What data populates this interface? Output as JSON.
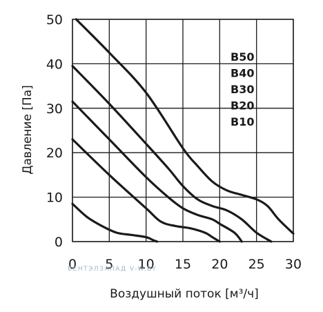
{
  "chart_data": {
    "type": "line",
    "xlabel": "Воздушный поток [м³/ч]",
    "ylabel": "Давление [Па]",
    "xlim": [
      0,
      30
    ],
    "ylim": [
      0,
      50
    ],
    "x_ticks": [
      "0",
      "5",
      "10",
      "15",
      "20",
      "25",
      "30"
    ],
    "y_ticks": [
      "0",
      "10",
      "20",
      "30",
      "40",
      "50"
    ],
    "grid": true,
    "legend_labels": [
      "B50",
      "B40",
      "B30",
      "B20",
      "B10"
    ],
    "series": [
      {
        "name": "B50",
        "points": [
          [
            0.5,
            50
          ],
          [
            5,
            42.5
          ],
          [
            10,
            33.5
          ],
          [
            15,
            21
          ],
          [
            17,
            17
          ],
          [
            19,
            13.5
          ],
          [
            21,
            11.5
          ],
          [
            23,
            10.5
          ],
          [
            25,
            9.5
          ],
          [
            26.5,
            8
          ],
          [
            28,
            5
          ],
          [
            30,
            1.8
          ]
        ]
      },
      {
        "name": "B40",
        "points": [
          [
            0,
            39.5
          ],
          [
            5,
            31
          ],
          [
            10,
            22
          ],
          [
            13,
            16.5
          ],
          [
            15,
            12.5
          ],
          [
            17,
            9.5
          ],
          [
            19,
            8
          ],
          [
            21,
            7
          ],
          [
            23,
            5
          ],
          [
            25,
            2
          ],
          [
            27,
            0
          ]
        ]
      },
      {
        "name": "B30",
        "points": [
          [
            0,
            31.5
          ],
          [
            5,
            23
          ],
          [
            10,
            14.5
          ],
          [
            13,
            10
          ],
          [
            15,
            7.5
          ],
          [
            17,
            6
          ],
          [
            19,
            5
          ],
          [
            20,
            4
          ],
          [
            22,
            2
          ],
          [
            23,
            0
          ]
        ]
      },
      {
        "name": "B20",
        "points": [
          [
            0,
            23
          ],
          [
            5,
            15
          ],
          [
            10,
            7.5
          ],
          [
            12,
            4.5
          ],
          [
            14,
            3.5
          ],
          [
            16,
            3
          ],
          [
            18,
            2
          ],
          [
            19,
            1
          ],
          [
            20,
            0
          ]
        ]
      },
      {
        "name": "B10",
        "points": [
          [
            0,
            8.5
          ],
          [
            2,
            5.5
          ],
          [
            4,
            3.5
          ],
          [
            6,
            2
          ],
          [
            8,
            1.5
          ],
          [
            10,
            1
          ],
          [
            11,
            0.3
          ],
          [
            11.5,
            0
          ]
        ]
      }
    ]
  },
  "watermark": "ВЕНТЭЛЗАПАД   V-W.BY"
}
